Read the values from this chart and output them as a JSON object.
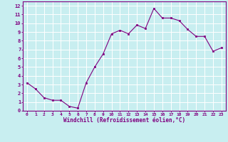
{
  "x": [
    0,
    1,
    2,
    3,
    4,
    5,
    6,
    7,
    8,
    9,
    10,
    11,
    12,
    13,
    14,
    15,
    16,
    17,
    18,
    19,
    20,
    21,
    22,
    23
  ],
  "y": [
    3.2,
    2.5,
    1.5,
    1.2,
    1.2,
    0.5,
    0.3,
    3.2,
    5.0,
    6.5,
    8.8,
    9.2,
    8.8,
    9.8,
    9.4,
    11.7,
    10.6,
    10.6,
    10.3,
    9.3,
    8.5,
    8.5,
    6.8,
    7.2
  ],
  "line_color": "#800080",
  "marker_color": "#800080",
  "bg_color": "#c8eef0",
  "grid_color": "#ffffff",
  "xlabel": "Windchill (Refroidissement éolien,°C)",
  "xlabel_color": "#800080",
  "xtick_labels": [
    "0",
    "1",
    "2",
    "3",
    "4",
    "5",
    "6",
    "7",
    "8",
    "9",
    "10",
    "11",
    "12",
    "13",
    "14",
    "15",
    "16",
    "17",
    "18",
    "19",
    "20",
    "21",
    "22",
    "23"
  ],
  "ytick_labels": [
    "0",
    "1",
    "2",
    "3",
    "4",
    "5",
    "6",
    "7",
    "8",
    "9",
    "10",
    "11",
    "12"
  ],
  "xlim": [
    -0.5,
    23.5
  ],
  "ylim": [
    0,
    12.5
  ],
  "tick_color": "#800080",
  "axis_color": "#800080",
  "spine_color": "#800080"
}
